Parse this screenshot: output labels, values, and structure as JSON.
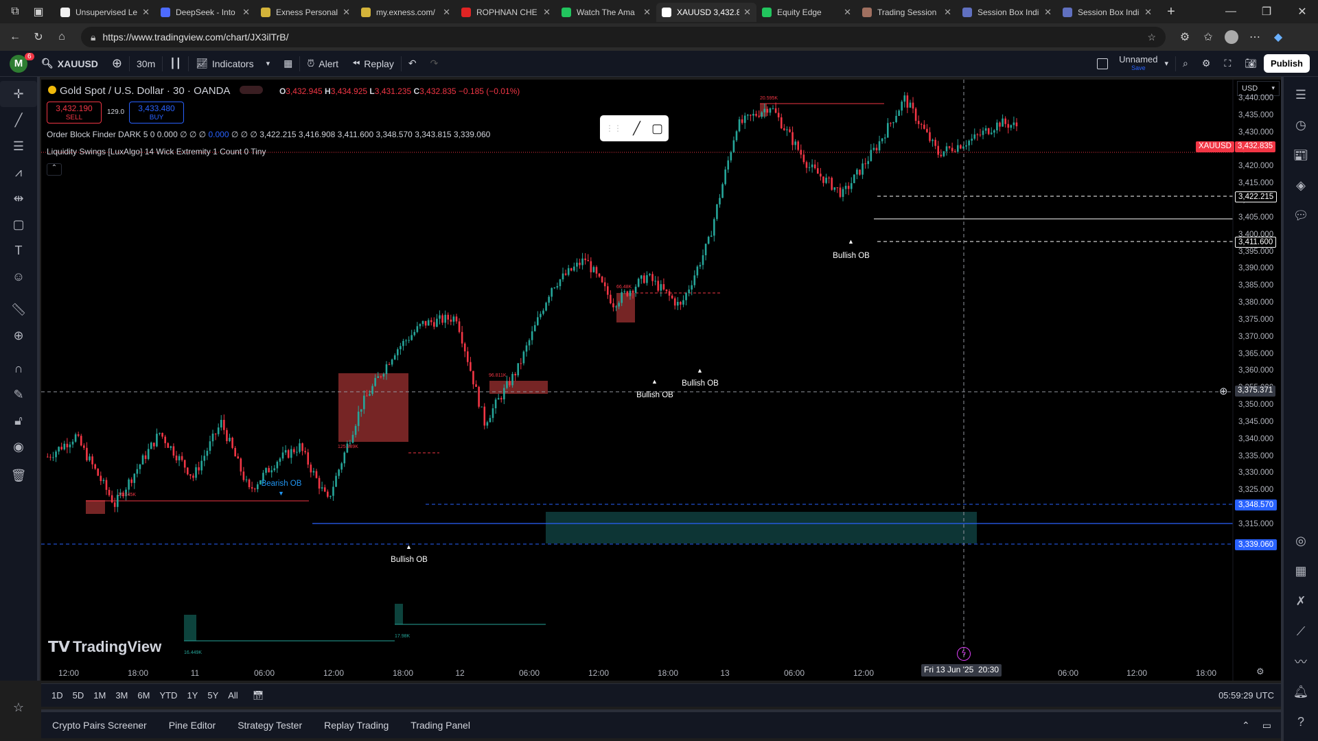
{
  "tabs": [
    {
      "label": "Unsupervised Le",
      "color": "#f0f0f0"
    },
    {
      "label": "DeepSeek - Into",
      "color": "#4d6bfe"
    },
    {
      "label": "Exness Personal",
      "color": "#d4b43a"
    },
    {
      "label": "my.exness.com/",
      "color": "#d4b43a"
    },
    {
      "label": "ROPHNAN CHE",
      "color": "#e02424"
    },
    {
      "label": "Watch The Ama",
      "color": "#22c55e"
    },
    {
      "label": "XAUUSD 3,432.8",
      "color": "#ffffff"
    },
    {
      "label": "Equity Edge",
      "color": "#22c55e"
    },
    {
      "label": "Trading Session",
      "color": "#a07060"
    },
    {
      "label": "Session Box Indi",
      "color": "#6070c0"
    },
    {
      "label": "Session Box Indi",
      "color": "#6070c0"
    }
  ],
  "address": {
    "url": "https://www.tradingview.com/chart/JX3ilTrB/"
  },
  "toolbar": {
    "badge_count": "6",
    "avatar_letter": "M",
    "symbol": "XAUUSD",
    "interval": "30m",
    "indicators_label": "Indicators",
    "alert_label": "Alert",
    "replay_label": "Replay",
    "layout_name": "Unnamed",
    "layout_sub": "Save",
    "publish_label": "Publish"
  },
  "legend": {
    "title": "Gold Spot / U.S. Dollar · 30 · OANDA",
    "o_label": "O",
    "o": "3,432.945",
    "h_label": "H",
    "h": "3,434.925",
    "l_label": "L",
    "l": "3,431.235",
    "c_label": "C",
    "c": "3,432.835",
    "change": "−0.185 (−0.01%)",
    "sell_price": "3,432.190",
    "sell_label": "SELL",
    "spread": "129.0",
    "buy_price": "3,433.480",
    "buy_label": "BUY",
    "ind1": "Order Block Finder DARK 5 0",
    "ind1_vals_a": "0.000 ∅ ∅ ∅",
    "ind1_vals_b": "0.000",
    "ind1_vals_c": "∅ ∅ ∅ 3,422.215 3,416.908 3,411.600 3,348.570 3,343.815 3,339.060",
    "ind2": "Liquidity Swings [LuxAlgo] 14 Wick Extremity 1 Count 0 Tiny"
  },
  "chart_data": {
    "type": "candlestick",
    "symbol": "XAUUSD",
    "currency": "USD",
    "y_axis": [
      "3,440.000",
      "3,435.000",
      "3,430.000",
      "3,425.000",
      "3,420.000",
      "3,415.000",
      "3,410.000",
      "3,405.000",
      "3,400.000",
      "3,395.000",
      "3,390.000",
      "3,385.000",
      "3,380.000",
      "3,375.000",
      "3,370.000",
      "3,365.000",
      "3,360.000",
      "3,355.000",
      "3,350.000",
      "3,345.000",
      "3,340.000",
      "3,335.000",
      "3,330.000",
      "3,325.000",
      "3,320.000",
      "3,315.000"
    ],
    "x_axis": [
      "12:00",
      "18:00",
      "11",
      "06:00",
      "12:00",
      "18:00",
      "12",
      "06:00",
      "12:00",
      "18:00",
      "13",
      "06:00",
      "12:00",
      "06:00",
      "12:00",
      "18:00"
    ],
    "cursor_date": "Fri 13 Jun '25",
    "cursor_time": "20:30",
    "cursor_price": "3,375.371",
    "last_price_label": "XAUUSD",
    "last_price": "3,432.835",
    "level_labels": [
      "3,422.215",
      "3,411.600",
      "3,348.570",
      "3,339.060"
    ],
    "annotations": [
      {
        "text": "Bearish OB",
        "price": 3347
      },
      {
        "text": "Bullish OB",
        "price": 3338
      },
      {
        "text": "Bullish OB",
        "price": 3381
      },
      {
        "text": "Bullish OB",
        "price": 3384
      },
      {
        "text": "Bullish OB",
        "price": 3415
      }
    ],
    "volume_tags": [
      "20.745K",
      "125.389K",
      "96.811K",
      "66.48K",
      "20.595K",
      "16.449K",
      "17.98K"
    ],
    "watermark": "TradingView"
  },
  "range_bar": {
    "ranges": [
      "1D",
      "5D",
      "1M",
      "3M",
      "6M",
      "YTD",
      "1Y",
      "5Y",
      "All"
    ],
    "clock": "05:59:29 UTC"
  },
  "bottom_panel": {
    "tabs": [
      "Crypto Pairs Screener",
      "Pine Editor",
      "Strategy Tester",
      "Replay Trading",
      "Trading Panel"
    ]
  }
}
